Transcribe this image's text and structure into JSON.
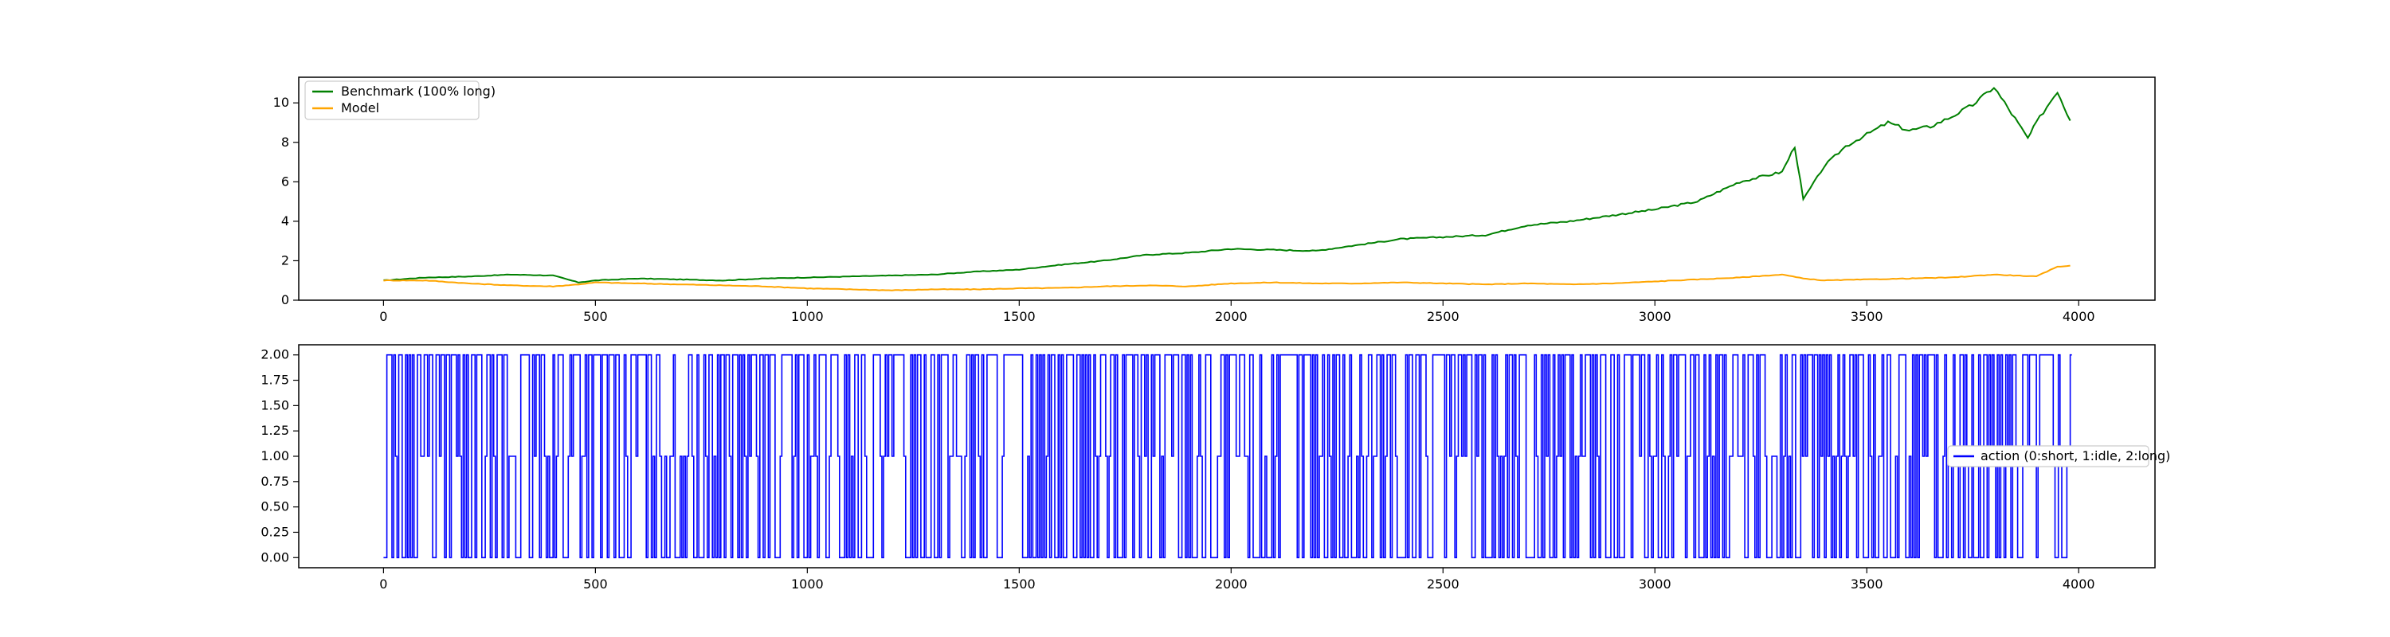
{
  "chart_data": [
    {
      "type": "line",
      "title": "",
      "xlabel": "",
      "ylabel": "",
      "xlim": [
        -200,
        4180
      ],
      "ylim": [
        0,
        11.3
      ],
      "xticks": [
        0,
        500,
        1000,
        1500,
        2000,
        2500,
        3000,
        3500,
        4000
      ],
      "yticks": [
        0,
        2,
        4,
        6,
        8,
        10
      ],
      "legend": "upper-left",
      "grid": false,
      "series": [
        {
          "name": "Benchmark (100% long)",
          "color": "#008000",
          "x": [
            0,
            100,
            200,
            300,
            400,
            460,
            500,
            600,
            700,
            800,
            900,
            1000,
            1100,
            1200,
            1300,
            1400,
            1500,
            1600,
            1700,
            1800,
            1900,
            2000,
            2100,
            2200,
            2300,
            2400,
            2500,
            2600,
            2700,
            2800,
            2900,
            3000,
            3100,
            3200,
            3300,
            3330,
            3350,
            3400,
            3450,
            3500,
            3550,
            3600,
            3650,
            3700,
            3750,
            3800,
            3850,
            3880,
            3900,
            3950,
            3980
          ],
          "y": [
            1.0,
            1.15,
            1.2,
            1.3,
            1.25,
            0.9,
            1.0,
            1.1,
            1.05,
            1.0,
            1.1,
            1.15,
            1.2,
            1.25,
            1.3,
            1.45,
            1.55,
            1.8,
            2.0,
            2.3,
            2.4,
            2.6,
            2.55,
            2.5,
            2.8,
            3.1,
            3.2,
            3.3,
            3.8,
            4.0,
            4.3,
            4.6,
            5.0,
            6.0,
            6.5,
            7.8,
            5.1,
            6.8,
            7.8,
            8.4,
            9.0,
            8.6,
            8.8,
            9.3,
            9.9,
            10.8,
            9.2,
            8.2,
            9.0,
            10.6,
            9.1
          ]
        },
        {
          "name": "Model",
          "color": "#ffa500",
          "x": [
            0,
            100,
            200,
            300,
            400,
            460,
            500,
            600,
            700,
            800,
            900,
            1000,
            1100,
            1200,
            1300,
            1400,
            1500,
            1600,
            1700,
            1800,
            1900,
            2000,
            2100,
            2200,
            2300,
            2400,
            2500,
            2600,
            2700,
            2800,
            2900,
            3000,
            3100,
            3200,
            3300,
            3350,
            3400,
            3500,
            3600,
            3700,
            3800,
            3900,
            3950,
            3980
          ],
          "y": [
            1.0,
            1.0,
            0.85,
            0.75,
            0.7,
            0.8,
            0.9,
            0.85,
            0.8,
            0.75,
            0.7,
            0.6,
            0.55,
            0.5,
            0.55,
            0.55,
            0.6,
            0.62,
            0.7,
            0.75,
            0.7,
            0.85,
            0.9,
            0.85,
            0.85,
            0.9,
            0.85,
            0.8,
            0.85,
            0.8,
            0.85,
            0.95,
            1.05,
            1.15,
            1.3,
            1.1,
            1.0,
            1.05,
            1.1,
            1.15,
            1.3,
            1.2,
            1.7,
            1.75
          ]
        }
      ]
    },
    {
      "type": "line",
      "title": "",
      "xlabel": "",
      "ylabel": "",
      "xlim": [
        -200,
        4180
      ],
      "ylim": [
        -0.1,
        2.1
      ],
      "xticks": [
        0,
        500,
        1000,
        1500,
        2000,
        2500,
        3000,
        3500,
        4000
      ],
      "yticks": [
        0.0,
        0.25,
        0.5,
        0.75,
        1.0,
        1.25,
        1.5,
        1.75,
        2.0
      ],
      "legend": "center-right",
      "grid": false,
      "series": [
        {
          "name": "action (0:short, 1:idle, 2:long)",
          "color": "#0000ff",
          "x_start": 0,
          "x_end": 3980,
          "values_description_only_visual": "dense switching between 0, 1 and 2"
        }
      ]
    }
  ]
}
